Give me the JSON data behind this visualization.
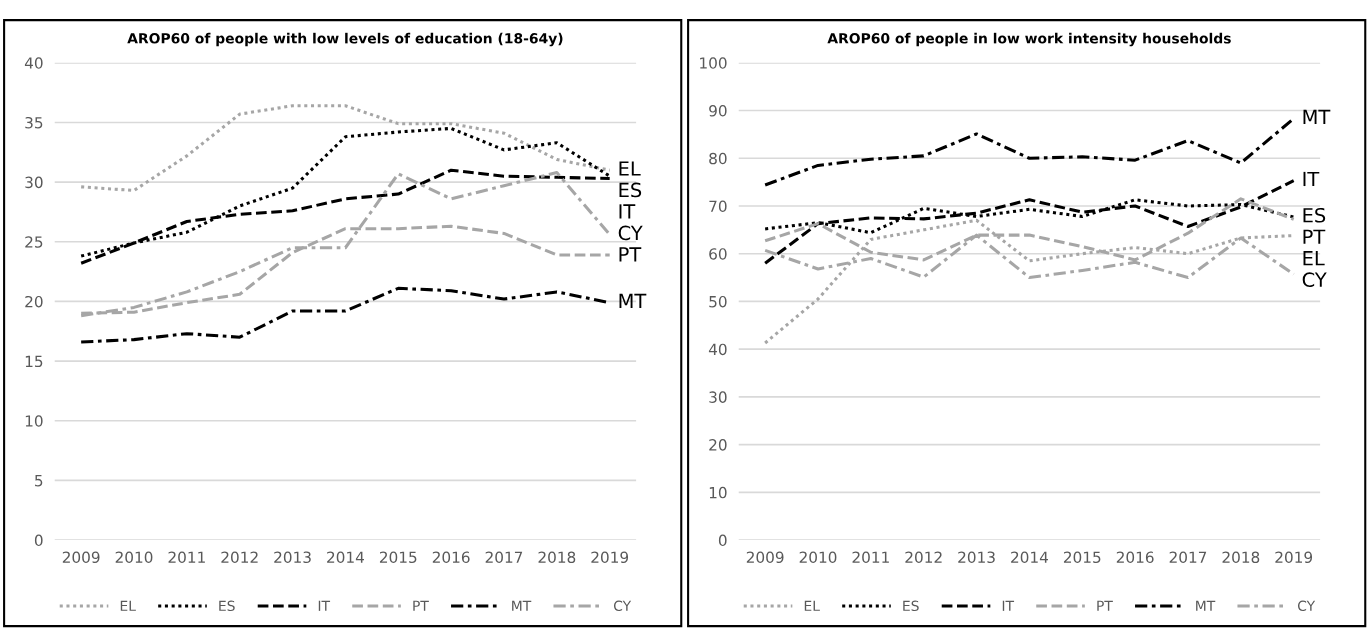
{
  "chart_data": [
    {
      "type": "line",
      "title": "AROP60 of people with low levels of education (18-64y)",
      "categories": [
        "2009",
        "2010",
        "2011",
        "2012",
        "2013",
        "2014",
        "2015",
        "2016",
        "2017",
        "2018",
        "2019"
      ],
      "ylim": [
        0,
        40
      ],
      "yticks": [
        0,
        5,
        10,
        15,
        20,
        25,
        30,
        35,
        40
      ],
      "grid": "y",
      "legend": "bottom",
      "series": [
        {
          "name": "EL",
          "color": "#a6a6a6",
          "line_style": "dotted",
          "values": [
            29.6,
            29.3,
            32.2,
            35.7,
            36.4,
            36.4,
            34.9,
            34.9,
            34.1,
            31.9,
            31.0
          ]
        },
        {
          "name": "ES",
          "color": "#000000",
          "line_style": "dotted",
          "values": [
            23.8,
            24.9,
            25.8,
            28.0,
            29.5,
            33.8,
            34.2,
            34.5,
            32.7,
            33.3,
            30.5
          ]
        },
        {
          "name": "IT",
          "color": "#000000",
          "line_style": "dashed",
          "values": [
            23.2,
            24.9,
            26.7,
            27.3,
            27.6,
            28.6,
            29.0,
            31.0,
            30.5,
            30.4,
            30.3
          ]
        },
        {
          "name": "PT",
          "color": "#a6a6a6",
          "line_style": "dashed",
          "values": [
            19.0,
            19.1,
            19.9,
            20.6,
            24.1,
            26.1,
            26.1,
            26.3,
            25.7,
            23.9,
            23.9
          ]
        },
        {
          "name": "MT",
          "color": "#000000",
          "line_style": "dashdot",
          "values": [
            16.6,
            16.8,
            17.3,
            17.0,
            19.2,
            19.2,
            21.1,
            20.9,
            20.2,
            20.8,
            19.9
          ]
        },
        {
          "name": "CY",
          "color": "#a6a6a6",
          "line_style": "dashdot",
          "values": [
            18.8,
            19.5,
            20.8,
            22.5,
            24.5,
            24.5,
            30.7,
            28.6,
            29.7,
            30.8,
            25.6
          ]
        }
      ]
    },
    {
      "type": "line",
      "title": "AROP60 of people in low work intensity households",
      "categories": [
        "2009",
        "2010",
        "2011",
        "2012",
        "2013",
        "2014",
        "2015",
        "2016",
        "2017",
        "2018",
        "2019"
      ],
      "ylim": [
        0,
        100
      ],
      "yticks": [
        0,
        10,
        20,
        30,
        40,
        50,
        60,
        70,
        80,
        90,
        100
      ],
      "grid": "y",
      "legend": "bottom",
      "series": [
        {
          "name": "EL",
          "color": "#a6a6a6",
          "line_style": "dotted",
          "values": [
            41.3,
            50.5,
            63.0,
            65.0,
            67.0,
            58.5,
            60.0,
            61.3,
            60.0,
            63.3,
            63.8
          ]
        },
        {
          "name": "ES",
          "color": "#000000",
          "line_style": "dotted",
          "values": [
            65.2,
            66.5,
            64.4,
            69.5,
            67.8,
            69.3,
            67.8,
            71.3,
            70.0,
            70.3,
            67.7
          ]
        },
        {
          "name": "IT",
          "color": "#000000",
          "line_style": "dashed",
          "values": [
            58.0,
            66.3,
            67.5,
            67.3,
            68.5,
            71.3,
            68.7,
            70.0,
            65.7,
            69.8,
            75.3
          ]
        },
        {
          "name": "PT",
          "color": "#a6a6a6",
          "line_style": "dashed",
          "values": [
            62.7,
            66.3,
            60.3,
            58.7,
            63.9,
            63.9,
            61.5,
            58.7,
            64.3,
            71.5,
            67.2
          ]
        },
        {
          "name": "MT",
          "color": "#000000",
          "line_style": "dashdot",
          "values": [
            74.4,
            78.5,
            79.8,
            80.5,
            85.1,
            80.0,
            80.3,
            79.6,
            83.7,
            79.0,
            88.3
          ]
        },
        {
          "name": "CY",
          "color": "#a6a6a6",
          "line_style": "dashdot",
          "values": [
            60.7,
            56.8,
            59.0,
            55.1,
            63.9,
            55.0,
            56.5,
            58.2,
            55.0,
            63.3,
            55.7
          ]
        }
      ]
    }
  ]
}
